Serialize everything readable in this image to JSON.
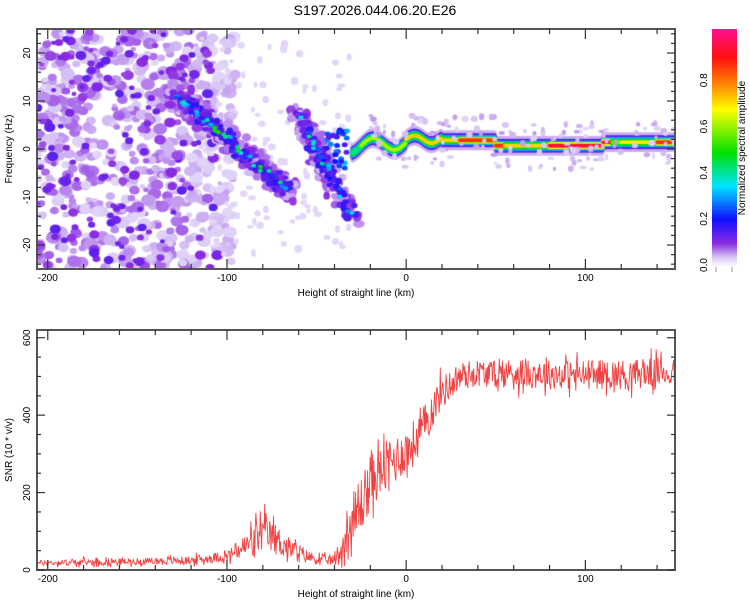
{
  "title": "S197.2026.044.06.20.E26",
  "chart_data": [
    {
      "type": "heatmap",
      "title": "S197.2026.044.06.20.E26",
      "xlabel": "Height of straight line (km)",
      "ylabel": "Frequency (Hz)",
      "xlim": [
        -206,
        150
      ],
      "ylim": [
        -25,
        25
      ],
      "xticks": [
        -200,
        -100,
        0,
        100
      ],
      "xtick_labels": [
        "-200",
        "-100",
        "0",
        "100"
      ],
      "yticks": [
        -20,
        -10,
        0,
        10,
        20
      ],
      "ytick_labels": [
        "-20",
        "-10",
        "0",
        "10",
        "20"
      ],
      "colorbar": {
        "label": "Normalized spectral amplitude",
        "range": [
          0,
          1
        ],
        "ticks": [
          0.0,
          0.2,
          0.4,
          0.6,
          0.8
        ],
        "tick_labels": [
          "0.0",
          "0.2",
          "0.4",
          "0.6",
          "0.8"
        ],
        "colormap": [
          "#ffffff",
          "#d9c8f5",
          "#8a2be2",
          "#1010ff",
          "#00e5ff",
          "#00e000",
          "#ffff00",
          "#ff8c00",
          "#ff1010",
          "#ff1090"
        ]
      },
      "features": [
        {
          "name": "noise scatter",
          "x_range": [
            -206,
            -105
          ],
          "freq_range": [
            -25,
            25
          ],
          "amplitude": 0.12
        },
        {
          "name": "descending track A",
          "x_start": -130,
          "freq_start": 12,
          "x_end": -65,
          "freq_end": -9,
          "amplitude": 0.3
        },
        {
          "name": "descending track B",
          "x_start": -60,
          "freq_start": 7,
          "x_end": -30,
          "freq_end": -14,
          "amplitude": 0.22
        },
        {
          "name": "carrier line",
          "x_range": [
            -30,
            150
          ],
          "freq": 1.5,
          "amplitude": 0.85
        }
      ]
    },
    {
      "type": "line",
      "xlabel": "Height of straight line (km)",
      "ylabel": "SNR (10 * v/v)",
      "xlim": [
        -206,
        150
      ],
      "ylim": [
        0,
        620
      ],
      "xticks": [
        -200,
        -100,
        0,
        100
      ],
      "xtick_labels": [
        "-200",
        "-100",
        "0",
        "100"
      ],
      "yticks": [
        0,
        200,
        400,
        600
      ],
      "ytick_labels": [
        "0",
        "200",
        "400",
        "600"
      ],
      "color": "#ee2222",
      "series": [
        {
          "name": "SNR envelope",
          "x": [
            -206,
            -180,
            -150,
            -120,
            -100,
            -90,
            -85,
            -80,
            -75,
            -70,
            -65,
            -60,
            -55,
            -50,
            -45,
            -40,
            -35,
            -32,
            -28,
            -25,
            -20,
            -15,
            -10,
            -5,
            0,
            5,
            10,
            15,
            20,
            25,
            30,
            40,
            50,
            60,
            80,
            100,
            120,
            140,
            150
          ],
          "mean": [
            18,
            20,
            22,
            25,
            35,
            60,
            80,
            95,
            85,
            70,
            55,
            45,
            35,
            28,
            25,
            25,
            60,
            110,
            130,
            170,
            230,
            250,
            270,
            290,
            310,
            330,
            370,
            420,
            460,
            480,
            500,
            510,
            505,
            510,
            505,
            505,
            505,
            510,
            510
          ],
          "spread": [
            10,
            12,
            12,
            15,
            20,
            45,
            60,
            70,
            60,
            55,
            40,
            35,
            25,
            20,
            18,
            20,
            80,
            120,
            120,
            110,
            100,
            90,
            100,
            90,
            80,
            90,
            80,
            70,
            60,
            55,
            55,
            50,
            50,
            55,
            55,
            55,
            55,
            55,
            50
          ]
        }
      ]
    }
  ]
}
